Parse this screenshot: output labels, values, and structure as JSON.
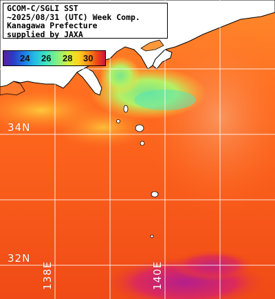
{
  "title": {
    "line1": "GCOM-C/SGLI SST",
    "line2": "~2025/08/31 (UTC) Week Comp.",
    "line3": "Kanagawa Prefecture",
    "line4": "supplied by JAXA"
  },
  "colorbar": {
    "ticks": [
      "24",
      "26",
      "28",
      "30"
    ],
    "unit_range": [
      23,
      31
    ]
  },
  "latitude_labels": [
    "34N",
    "32N"
  ],
  "longitude_labels": [
    "138E",
    "140E"
  ],
  "colors": {
    "land": "#ffffff",
    "warm_sea": "#ff6a1e",
    "hot_sea": "#f03e14",
    "cool_bay": "#a8f06a",
    "coastal_yellow": "#ffd23c",
    "very_hot_patch": "#b41e8c",
    "grid": "#ffffff",
    "coast_outline": "#000000"
  },
  "icons": [
    "land-mass",
    "island",
    "graticule"
  ]
}
